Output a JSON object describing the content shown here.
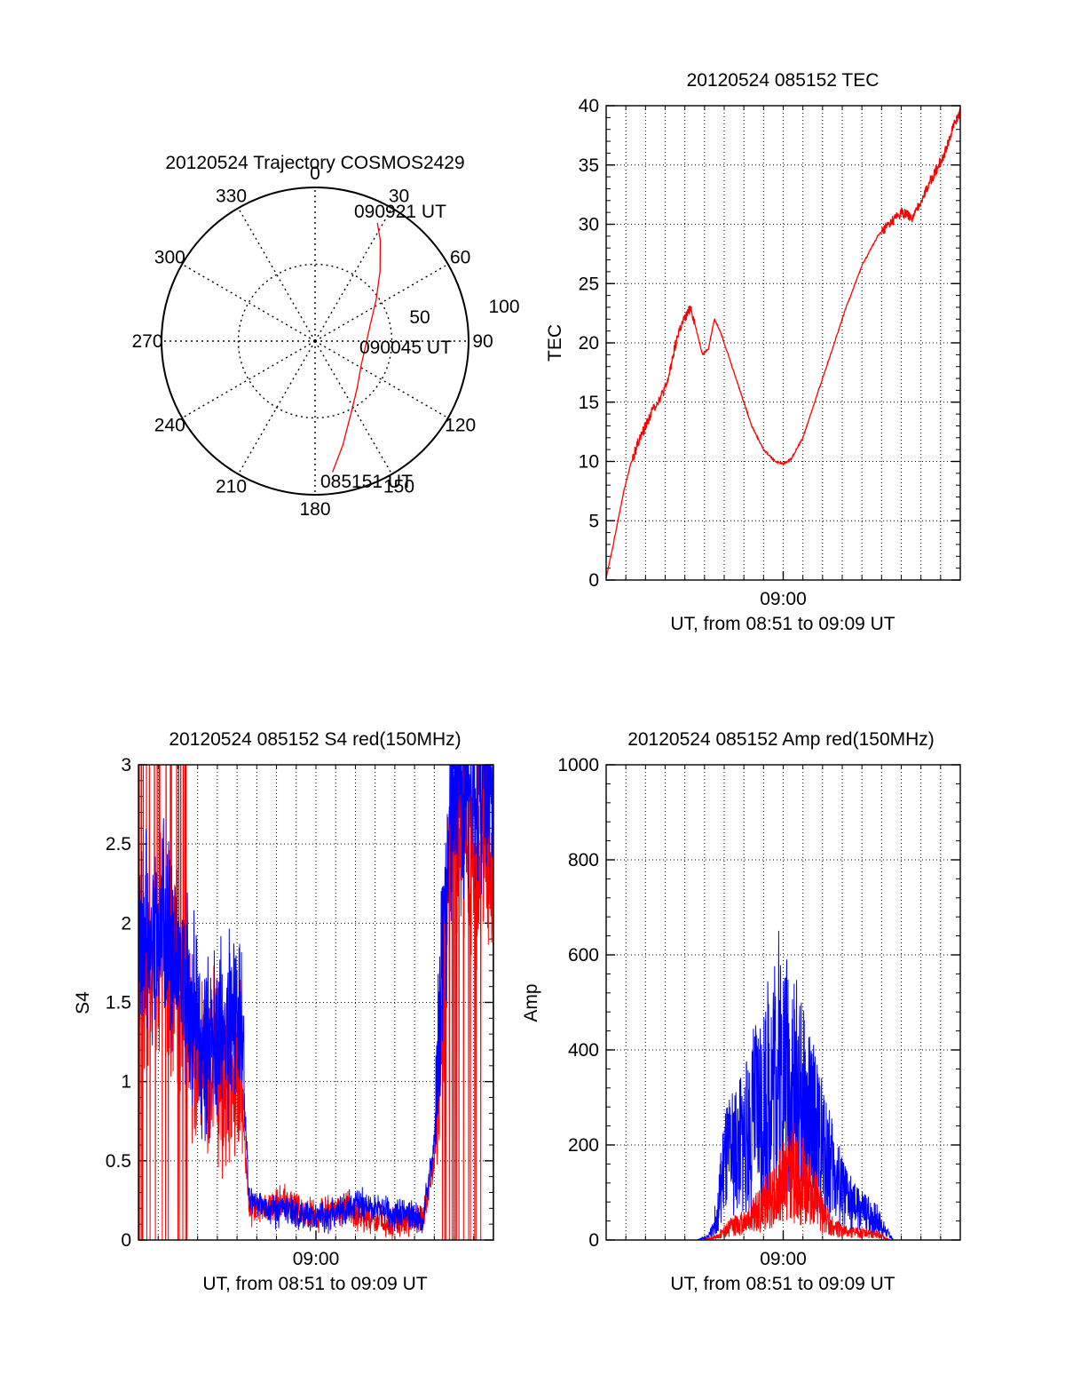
{
  "colors": {
    "red": "#ff0000",
    "blue": "#0000ff",
    "axis": "#000000",
    "grid": "#000000"
  },
  "chart_data": [
    {
      "id": "polar",
      "type": "polar-trajectory",
      "title": "20120524 Trajectory COSMOS2429",
      "angle_labels": [
        {
          "deg": 0,
          "text": "0"
        },
        {
          "deg": 30,
          "text": "30"
        },
        {
          "deg": 60,
          "text": "60"
        },
        {
          "deg": 90,
          "text": "90"
        },
        {
          "deg": 120,
          "text": "120"
        },
        {
          "deg": 150,
          "text": "150"
        },
        {
          "deg": 180,
          "text": "180"
        },
        {
          "deg": 210,
          "text": "210"
        },
        {
          "deg": 240,
          "text": "240"
        },
        {
          "deg": 270,
          "text": "270"
        },
        {
          "deg": 300,
          "text": "300"
        },
        {
          "deg": 330,
          "text": "330"
        }
      ],
      "radius_labels": [
        "50",
        "100"
      ],
      "r_max": 100,
      "track_labels": [
        "090921 UT",
        "090045 UT",
        "085151 UT"
      ],
      "trajectory": [
        {
          "az": 172.4,
          "r": 86
        },
        {
          "az": 165.0,
          "r": 70
        },
        {
          "az": 153.0,
          "r": 52
        },
        {
          "az": 138.0,
          "r": 41
        },
        {
          "az": 118.0,
          "r": 34
        },
        {
          "az": 96.0,
          "r": 33
        },
        {
          "az": 75.0,
          "r": 37
        },
        {
          "az": 56.0,
          "r": 48
        },
        {
          "az": 43.0,
          "r": 62
        },
        {
          "az": 33.0,
          "r": 78
        },
        {
          "az": 27.8,
          "r": 87
        }
      ]
    },
    {
      "id": "tec",
      "type": "line",
      "title": "20120524 085152 TEC",
      "xlabel": "UT, from 08:51 to 09:09 UT",
      "ylabel": "TEC",
      "x_unit": "minutes after 08:51",
      "xlim": [
        0,
        18
      ],
      "ylim": [
        0,
        40
      ],
      "yticks": [
        "0",
        "5",
        "10",
        "15",
        "20",
        "25",
        "30",
        "35",
        "40"
      ],
      "xticks": [
        {
          "x": 9,
          "label": "09:00"
        }
      ],
      "grid": true,
      "series": [
        {
          "color": "red",
          "points": [
            [
              0.0,
              0.2
            ],
            [
              0.3,
              2.5
            ],
            [
              0.6,
              5.0
            ],
            [
              0.9,
              7.5
            ],
            [
              1.2,
              9.5
            ],
            [
              1.6,
              11.5
            ],
            [
              2.0,
              13.0
            ],
            [
              2.4,
              14.5
            ],
            [
              2.8,
              15.5
            ],
            [
              3.1,
              16.5
            ],
            [
              3.4,
              19.0
            ],
            [
              3.7,
              21.0
            ],
            [
              4.0,
              22.0
            ],
            [
              4.3,
              23.0
            ],
            [
              4.6,
              21.0
            ],
            [
              4.9,
              19.0
            ],
            [
              5.2,
              19.5
            ],
            [
              5.5,
              22.0
            ],
            [
              5.8,
              21.0
            ],
            [
              6.2,
              19.0
            ],
            [
              6.8,
              16.0
            ],
            [
              7.4,
              13.0
            ],
            [
              8.0,
              11.0
            ],
            [
              8.6,
              10.0
            ],
            [
              9.0,
              9.8
            ],
            [
              9.4,
              10.2
            ],
            [
              10.0,
              12.0
            ],
            [
              10.6,
              15.0
            ],
            [
              11.4,
              19.0
            ],
            [
              12.2,
              23.0
            ],
            [
              13.0,
              26.5
            ],
            [
              13.8,
              29.0
            ],
            [
              14.4,
              30.0
            ],
            [
              15.0,
              31.0
            ],
            [
              15.6,
              30.5
            ],
            [
              16.0,
              32.0
            ],
            [
              16.6,
              34.0
            ],
            [
              17.2,
              36.0
            ],
            [
              17.6,
              38.0
            ],
            [
              18.0,
              39.5
            ]
          ]
        }
      ]
    },
    {
      "id": "s4",
      "type": "line",
      "title": "20120524 085152 S4 red(150MHz)",
      "xlabel": "UT, from 08:51 to 09:09 UT",
      "ylabel": "S4",
      "x_unit": "minutes after 08:51",
      "xlim": [
        0,
        18
      ],
      "ylim": [
        0,
        3
      ],
      "yticks": [
        "0",
        "0.5",
        "1",
        "1.5",
        "2",
        "2.5",
        "3"
      ],
      "xticks": [
        {
          "x": 9,
          "label": "09:00"
        }
      ],
      "grid": true,
      "series": [
        {
          "color": "red",
          "style": "noisy-spiky",
          "points": [
            [
              0.0,
              1.8
            ],
            [
              0.6,
              1.6
            ],
            [
              1.2,
              1.9
            ],
            [
              1.8,
              1.7
            ],
            [
              2.4,
              1.4
            ],
            [
              3.0,
              1.2
            ],
            [
              3.6,
              1.1
            ],
            [
              4.2,
              1.0
            ],
            [
              4.8,
              1.1
            ],
            [
              5.2,
              1.0
            ],
            [
              5.6,
              0.2
            ],
            [
              6.2,
              0.2
            ],
            [
              7.0,
              0.22
            ],
            [
              7.6,
              0.25
            ],
            [
              8.2,
              0.18
            ],
            [
              9.0,
              0.15
            ],
            [
              9.8,
              0.18
            ],
            [
              10.6,
              0.2
            ],
            [
              11.4,
              0.15
            ],
            [
              12.2,
              0.12
            ],
            [
              13.0,
              0.1
            ],
            [
              13.6,
              0.12
            ],
            [
              14.4,
              0.1
            ],
            [
              15.0,
              0.5
            ],
            [
              15.4,
              1.5
            ],
            [
              15.8,
              2.5
            ],
            [
              16.4,
              2.6
            ],
            [
              17.0,
              2.4
            ],
            [
              17.6,
              2.6
            ],
            [
              18.0,
              2.2
            ]
          ]
        },
        {
          "color": "blue",
          "style": "noisy",
          "points": [
            [
              0.0,
              1.9
            ],
            [
              0.6,
              1.8
            ],
            [
              1.2,
              2.0
            ],
            [
              1.8,
              1.8
            ],
            [
              2.4,
              1.6
            ],
            [
              3.0,
              1.3
            ],
            [
              3.6,
              1.2
            ],
            [
              4.2,
              1.3
            ],
            [
              4.8,
              1.4
            ],
            [
              5.2,
              1.3
            ],
            [
              5.6,
              0.25
            ],
            [
              6.2,
              0.22
            ],
            [
              7.0,
              0.18
            ],
            [
              7.6,
              0.2
            ],
            [
              8.2,
              0.16
            ],
            [
              9.0,
              0.14
            ],
            [
              9.8,
              0.16
            ],
            [
              10.6,
              0.2
            ],
            [
              11.4,
              0.22
            ],
            [
              12.2,
              0.2
            ],
            [
              13.0,
              0.15
            ],
            [
              13.6,
              0.18
            ],
            [
              14.4,
              0.12
            ],
            [
              15.0,
              0.6
            ],
            [
              15.4,
              1.8
            ],
            [
              15.8,
              2.7
            ],
            [
              16.4,
              2.9
            ],
            [
              17.0,
              2.8
            ],
            [
              17.6,
              2.9
            ],
            [
              18.0,
              2.8
            ]
          ]
        }
      ]
    },
    {
      "id": "amp",
      "type": "line",
      "title": "20120524 085152 Amp red(150MHz)",
      "xlabel": "UT, from 08:51 to 09:09 UT",
      "ylabel": "Amp",
      "x_unit": "minutes after 08:51",
      "xlim": [
        0,
        18
      ],
      "ylim": [
        0,
        1000
      ],
      "yticks": [
        "0",
        "200",
        "400",
        "600",
        "800",
        "1000"
      ],
      "xticks": [
        {
          "x": 9,
          "label": "09:00"
        }
      ],
      "grid": true,
      "series": [
        {
          "color": "blue",
          "style": "envelope",
          "points": [
            [
              0.0,
              0
            ],
            [
              4.6,
              0
            ],
            [
              5.2,
              10
            ],
            [
              5.6,
              80
            ],
            [
              6.0,
              250
            ],
            [
              6.6,
              300
            ],
            [
              7.0,
              340
            ],
            [
              7.6,
              420
            ],
            [
              8.2,
              520
            ],
            [
              8.8,
              600
            ],
            [
              9.2,
              560
            ],
            [
              9.6,
              520
            ],
            [
              10.2,
              420
            ],
            [
              10.8,
              340
            ],
            [
              11.4,
              260
            ],
            [
              12.0,
              160
            ],
            [
              12.6,
              110
            ],
            [
              13.2,
              90
            ],
            [
              13.8,
              70
            ],
            [
              14.2,
              30
            ],
            [
              14.6,
              0
            ],
            [
              18.0,
              0
            ]
          ]
        },
        {
          "color": "red",
          "style": "envelope",
          "points": [
            [
              0.0,
              0
            ],
            [
              5.0,
              0
            ],
            [
              5.6,
              10
            ],
            [
              6.2,
              40
            ],
            [
              7.0,
              60
            ],
            [
              7.6,
              90
            ],
            [
              8.2,
              130
            ],
            [
              8.8,
              170
            ],
            [
              9.4,
              230
            ],
            [
              10.0,
              200
            ],
            [
              10.4,
              160
            ],
            [
              10.8,
              110
            ],
            [
              11.4,
              50
            ],
            [
              12.0,
              30
            ],
            [
              12.6,
              25
            ],
            [
              13.2,
              22
            ],
            [
              13.8,
              20
            ],
            [
              14.4,
              0
            ],
            [
              18.0,
              0
            ]
          ]
        }
      ]
    }
  ]
}
